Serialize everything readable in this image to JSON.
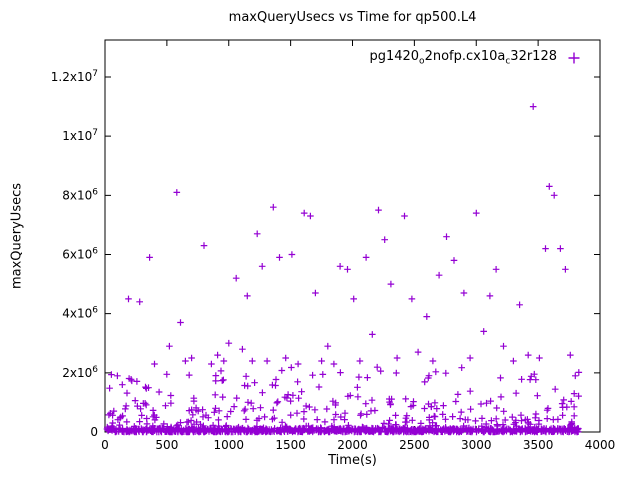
{
  "page": {
    "background": "#ffffff"
  },
  "chart_data": {
    "type": "scatter",
    "title": "maxQueryUsecs vs Time for qp500.L4",
    "xlabel": "Time(s)",
    "ylabel": "maxQueryUsecs",
    "xlim": [
      0,
      4000
    ],
    "ylim": [
      0,
      13250000
    ],
    "grid": false,
    "marker": "plus",
    "series_color": "#9400d3",
    "legend": {
      "position": "top-right",
      "parts": [
        {
          "text": "pg1420"
        },
        {
          "text": "o",
          "sub": true
        },
        {
          "text": "2nofp.cx10a"
        },
        {
          "text": "c",
          "sub": true
        },
        {
          "text": "32r128"
        }
      ]
    },
    "x_ticks": [
      {
        "value": 0,
        "label": "0"
      },
      {
        "value": 500,
        "label": "500"
      },
      {
        "value": 1000,
        "label": "1000"
      },
      {
        "value": 1500,
        "label": "1500"
      },
      {
        "value": 2000,
        "label": "2000"
      },
      {
        "value": 2500,
        "label": "2500"
      },
      {
        "value": 3000,
        "label": "3000"
      },
      {
        "value": 3500,
        "label": "3500"
      },
      {
        "value": 4000,
        "label": "4000"
      }
    ],
    "y_ticks": [
      {
        "value": 0,
        "label": "0"
      },
      {
        "value": 2000000,
        "label": "2x10^6"
      },
      {
        "value": 4000000,
        "label": "4x10^6"
      },
      {
        "value": 6000000,
        "label": "6x10^6"
      },
      {
        "value": 8000000,
        "label": "8x10^6"
      },
      {
        "value": 10000000,
        "label": "1x10^7"
      },
      {
        "value": 12000000,
        "label": "1.2x10^7"
      }
    ],
    "data_x_max": 3840,
    "points": [
      [
        100,
        1900000
      ],
      [
        140,
        1600000
      ],
      [
        190,
        4500000
      ],
      [
        280,
        4400000
      ],
      [
        360,
        5900000
      ],
      [
        400,
        2300000
      ],
      [
        520,
        2900000
      ],
      [
        580,
        8100000
      ],
      [
        610,
        3700000
      ],
      [
        650,
        2400000
      ],
      [
        700,
        2500000
      ],
      [
        800,
        6300000
      ],
      [
        860,
        2300000
      ],
      [
        910,
        2600000
      ],
      [
        960,
        2400000
      ],
      [
        1000,
        3000000
      ],
      [
        1060,
        5200000
      ],
      [
        1110,
        2800000
      ],
      [
        1150,
        4600000
      ],
      [
        1190,
        2400000
      ],
      [
        1230,
        6700000
      ],
      [
        1270,
        5600000
      ],
      [
        1310,
        2400000
      ],
      [
        1360,
        7600000
      ],
      [
        1410,
        5900000
      ],
      [
        1460,
        2500000
      ],
      [
        1510,
        6000000
      ],
      [
        1560,
        2300000
      ],
      [
        1610,
        7400000
      ],
      [
        1660,
        7300000
      ],
      [
        1700,
        4700000
      ],
      [
        1750,
        2400000
      ],
      [
        1800,
        2900000
      ],
      [
        1850,
        2300000
      ],
      [
        1900,
        5600000
      ],
      [
        1960,
        5500000
      ],
      [
        2010,
        4500000
      ],
      [
        2060,
        2400000
      ],
      [
        2110,
        5900000
      ],
      [
        2160,
        3300000
      ],
      [
        2210,
        7500000
      ],
      [
        2260,
        6500000
      ],
      [
        2310,
        5000000
      ],
      [
        2360,
        2500000
      ],
      [
        2420,
        7300000
      ],
      [
        2480,
        4500000
      ],
      [
        2530,
        2700000
      ],
      [
        2600,
        3900000
      ],
      [
        2650,
        2400000
      ],
      [
        2700,
        5300000
      ],
      [
        2760,
        6600000
      ],
      [
        2820,
        5800000
      ],
      [
        2900,
        4700000
      ],
      [
        2950,
        2500000
      ],
      [
        3000,
        7400000
      ],
      [
        3060,
        3400000
      ],
      [
        3110,
        4600000
      ],
      [
        3160,
        5500000
      ],
      [
        3220,
        2900000
      ],
      [
        3300,
        2400000
      ],
      [
        3350,
        4300000
      ],
      [
        3420,
        2600000
      ],
      [
        3460,
        11000000
      ],
      [
        3510,
        2500000
      ],
      [
        3560,
        6200000
      ],
      [
        3590,
        8300000
      ],
      [
        3630,
        8000000
      ],
      [
        3680,
        6200000
      ],
      [
        3720,
        5500000
      ],
      [
        3760,
        2600000
      ],
      [
        3800,
        1900000
      ]
    ],
    "dense_bands": [
      {
        "count": 900,
        "y_min": 0,
        "y_max": 130000,
        "skew": 1.5
      },
      {
        "count": 260,
        "y_min": 100000,
        "y_max": 1000000,
        "skew": 1.8
      },
      {
        "count": 90,
        "y_min": 1000000,
        "y_max": 2200000,
        "skew": 1.3
      }
    ]
  }
}
